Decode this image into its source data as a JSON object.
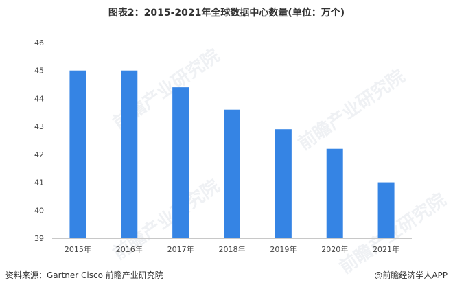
{
  "chart_data": {
    "type": "bar",
    "title": "图表2：2015-2021年全球数据中心数量(单位：万个)",
    "categories": [
      "2015年",
      "2016年",
      "2017年",
      "2018年",
      "2019年",
      "2020年",
      "2021年"
    ],
    "values": [
      45,
      45,
      44.4,
      43.6,
      42.9,
      42.2,
      41
    ],
    "ylim": [
      39,
      46
    ],
    "yticks": [
      "39",
      "40",
      "41",
      "42",
      "43",
      "44",
      "45",
      "46"
    ],
    "xlabel": "",
    "ylabel": "",
    "grid": false,
    "bar_color": "#3584E4"
  },
  "footer": {
    "source": "资料来源：Gartner Cisco 前瞻产业研究院",
    "credit": "@前瞻经济学人APP"
  },
  "watermark": "前瞻产业研究院"
}
